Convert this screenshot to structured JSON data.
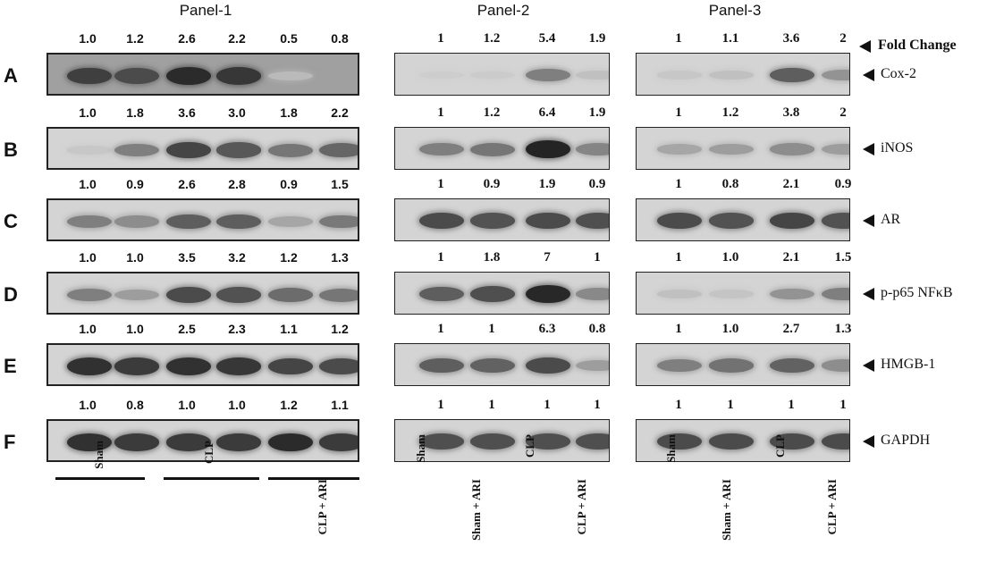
{
  "panels": [
    "Panel-1",
    "Panel-2",
    "Panel-3"
  ],
  "rows": [
    {
      "letter": "A",
      "protein": "Cox-2",
      "p1": [
        "1.0",
        "1.2",
        "2.6",
        "2.2",
        "0.5",
        "0.8"
      ],
      "p2": [
        "1",
        "1.2",
        "5.4",
        "1.9"
      ],
      "p3": [
        "1",
        "1.1",
        "3.6",
        "2"
      ],
      "p1_intensity": [
        0.78,
        0.72,
        0.88,
        0.82,
        0.15,
        0.28
      ],
      "p2_intensity": [
        0.05,
        0.06,
        0.45,
        0.12
      ],
      "p3_intensity": [
        0.08,
        0.12,
        0.62,
        0.35
      ]
    },
    {
      "letter": "B",
      "protein": "iNOS",
      "p1": [
        "1.0",
        "1.8",
        "3.6",
        "3.0",
        "1.8",
        "2.2"
      ],
      "p2": [
        "1",
        "1.2",
        "6.4",
        "1.9"
      ],
      "p3": [
        "1",
        "1.2",
        "3.8",
        "2"
      ],
      "p1_intensity": [
        0.08,
        0.45,
        0.75,
        0.65,
        0.5,
        0.58
      ],
      "p2_intensity": [
        0.45,
        0.5,
        0.92,
        0.42
      ],
      "p3_intensity": [
        0.25,
        0.3,
        0.38,
        0.3
      ]
    },
    {
      "letter": "C",
      "protein": "AR",
      "p1": [
        "1.0",
        "0.9",
        "2.6",
        "2.8",
        "0.9",
        "1.5"
      ],
      "p2": [
        "1",
        "0.9",
        "1.9",
        "0.9"
      ],
      "p3": [
        "1",
        "0.8",
        "2.1",
        "0.9"
      ],
      "p1_intensity": [
        0.45,
        0.38,
        0.62,
        0.62,
        0.25,
        0.48
      ],
      "p2_intensity": [
        0.72,
        0.68,
        0.72,
        0.7
      ],
      "p3_intensity": [
        0.72,
        0.68,
        0.75,
        0.68
      ]
    },
    {
      "letter": "D",
      "protein": "p-p65 NFκB",
      "p1": [
        "1.0",
        "1.0",
        "3.5",
        "3.2",
        "1.2",
        "1.3"
      ],
      "p2": [
        "1",
        "1.8",
        "7",
        "1"
      ],
      "p3": [
        "1",
        "1.0",
        "2.1",
        "1.5"
      ],
      "p1_intensity": [
        0.45,
        0.3,
        0.72,
        0.68,
        0.55,
        0.5
      ],
      "p2_intensity": [
        0.62,
        0.7,
        0.9,
        0.4
      ],
      "p3_intensity": [
        0.12,
        0.1,
        0.35,
        0.45
      ]
    },
    {
      "letter": "E",
      "protein": "HMGB-1",
      "p1": [
        "1.0",
        "1.0",
        "2.5",
        "2.3",
        "1.1",
        "1.2"
      ],
      "p2": [
        "1",
        "1",
        "6.3",
        "0.8"
      ],
      "p3": [
        "1",
        "1.0",
        "2.7",
        "1.3"
      ],
      "p1_intensity": [
        0.85,
        0.8,
        0.85,
        0.82,
        0.75,
        0.72
      ],
      "p2_intensity": [
        0.62,
        0.6,
        0.72,
        0.3
      ],
      "p3_intensity": [
        0.45,
        0.52,
        0.6,
        0.38
      ]
    },
    {
      "letter": "F",
      "protein": "GAPDH",
      "p1": [
        "1.0",
        "0.8",
        "1.0",
        "1.0",
        "1.2",
        "1.1"
      ],
      "p2": [
        "1",
        "1",
        "1",
        "1"
      ],
      "p3": [
        "1",
        "1",
        "1",
        "1"
      ],
      "p1_intensity": [
        0.85,
        0.8,
        0.8,
        0.8,
        0.88,
        0.8
      ],
      "p2_intensity": [
        0.7,
        0.7,
        0.7,
        0.7
      ],
      "p3_intensity": [
        0.72,
        0.72,
        0.72,
        0.72
      ]
    }
  ],
  "fold_change_label": "Fold Change",
  "panel1_groups": [
    "Sham",
    "CLP",
    "CLP + ARI"
  ],
  "lane_labels": [
    "Sham",
    "Sham + ARI",
    "CLP",
    "CLP + ARI"
  ]
}
